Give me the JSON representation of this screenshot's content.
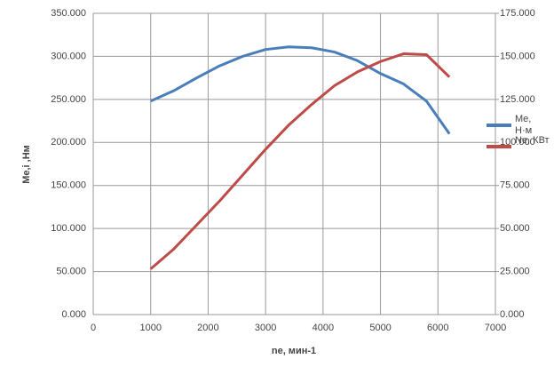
{
  "chart_data": {
    "type": "line",
    "x_label": "ne, мин-1",
    "y_label": "Me,i ,Нм",
    "x": [
      1000,
      1400,
      1800,
      2200,
      2600,
      3000,
      3400,
      3800,
      4200,
      4600,
      5000,
      5400,
      5800,
      6200
    ],
    "series": [
      {
        "name": "Me, Н·м",
        "color": "#4a7ebb",
        "values": [
          248,
          260,
          275,
          289,
          300,
          308,
          311,
          310,
          305,
          295,
          280,
          268,
          248,
          210
        ]
      },
      {
        "name": "Ne, КВт",
        "color": "#be4b48",
        "axis": "y2",
        "values": [
          26.5,
          38,
          52,
          66,
          81,
          96,
          110,
          122,
          133,
          141,
          147,
          151.5,
          151,
          138
        ]
      }
    ],
    "xlim": [
      0,
      7000
    ],
    "xticks": [
      0,
      1000,
      2000,
      3000,
      4000,
      5000,
      6000,
      7000
    ],
    "ylim": [
      0,
      350
    ],
    "yticks": [
      {
        "value": 0,
        "label": "0.000"
      },
      {
        "value": 50,
        "label": "50.000"
      },
      {
        "value": 100,
        "label": "100.000"
      },
      {
        "value": 150,
        "label": "150.000"
      },
      {
        "value": 200,
        "label": "200.000"
      },
      {
        "value": 250,
        "label": "250.000"
      },
      {
        "value": 300,
        "label": "300.000"
      },
      {
        "value": 350,
        "label": "350.000"
      }
    ],
    "y2lim": [
      0,
      175
    ],
    "y2ticks": [
      {
        "value": 0,
        "label": "0.000"
      },
      {
        "value": 25,
        "label": "25.000"
      },
      {
        "value": 50,
        "label": "50.000"
      },
      {
        "value": 75,
        "label": "75.000"
      },
      {
        "value": 100,
        "label": "100.000"
      },
      {
        "value": 125,
        "label": "125.000"
      },
      {
        "value": 150,
        "label": "150.000"
      },
      {
        "value": 175,
        "label": "175.000"
      }
    ],
    "grid": true
  }
}
